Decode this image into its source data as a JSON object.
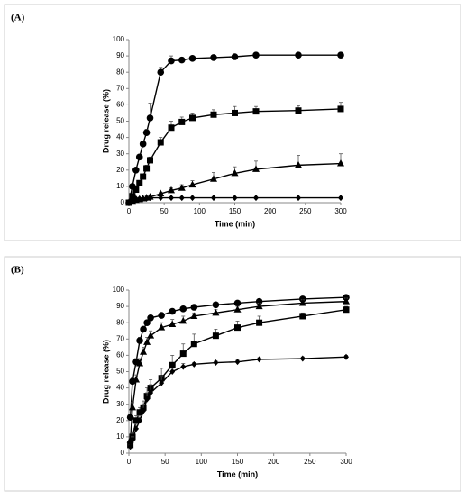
{
  "chart_data": [
    {
      "type": "line",
      "label": "(A)",
      "xlabel": "Time (min)",
      "ylabel": "Drug release (%)",
      "x": [
        0,
        5,
        10,
        15,
        20,
        25,
        30,
        45,
        60,
        75,
        90,
        120,
        150,
        180,
        240,
        300
      ],
      "xlim": [
        0,
        300
      ],
      "xticks": [
        0,
        50,
        100,
        150,
        200,
        250,
        300
      ],
      "ylim": [
        0,
        100
      ],
      "yticks": [
        0,
        10,
        20,
        30,
        40,
        50,
        60,
        70,
        80,
        90,
        100
      ],
      "series": [
        {
          "marker": "circle",
          "color": "#000000",
          "values": [
            0,
            10,
            20,
            28,
            36,
            43,
            52,
            80,
            87,
            87.5,
            88.5,
            89,
            89.5,
            90.5,
            90.5,
            90.5
          ],
          "errors": [
            0,
            1,
            1,
            1,
            1,
            2,
            9,
            3,
            3,
            1.5,
            1,
            1,
            1,
            1,
            1,
            1
          ]
        },
        {
          "marker": "square",
          "color": "#000000",
          "values": [
            0,
            4,
            8,
            12,
            16,
            21,
            26,
            37,
            46,
            49.5,
            52,
            54,
            55,
            56,
            56.5,
            57.5
          ],
          "errors": [
            0,
            1,
            1,
            1,
            1,
            2,
            2,
            3,
            4,
            3,
            3,
            3,
            4,
            3,
            3,
            4
          ]
        },
        {
          "marker": "triangle",
          "color": "#000000",
          "values": [
            0,
            1,
            1.5,
            2,
            2.5,
            3,
            3.5,
            5.5,
            7.5,
            9,
            11,
            14.5,
            18,
            20.5,
            23,
            24
          ],
          "errors": [
            0,
            0.5,
            0.5,
            0.5,
            0.5,
            1,
            1,
            1,
            1.5,
            2,
            2.5,
            4,
            4,
            5,
            6,
            6
          ]
        },
        {
          "marker": "diamond",
          "color": "#000000",
          "values": [
            0,
            2,
            2.5,
            2.5,
            2.5,
            2.5,
            3,
            3,
            3,
            3,
            3,
            3,
            3,
            3,
            3,
            3
          ],
          "errors": [
            0,
            0.3,
            0.3,
            0.3,
            0.3,
            0.3,
            0.3,
            0.3,
            0.3,
            0.3,
            0.3,
            0.3,
            0.3,
            0.3,
            0.3,
            0.3
          ]
        }
      ]
    },
    {
      "type": "line",
      "label": "(B)",
      "xlabel": "Time (min)",
      "ylabel": "Drug release (%)",
      "x": [
        2,
        5,
        10,
        15,
        20,
        25,
        30,
        45,
        60,
        75,
        90,
        120,
        150,
        180,
        240,
        300
      ],
      "xlim": [
        0,
        300
      ],
      "xticks": [
        0,
        50,
        100,
        150,
        200,
        250,
        300
      ],
      "ylim": [
        0,
        100
      ],
      "yticks": [
        0,
        10,
        20,
        30,
        40,
        50,
        60,
        70,
        80,
        90,
        100
      ],
      "series": [
        {
          "marker": "circle",
          "color": "#000000",
          "values": [
            22,
            44,
            56,
            69,
            76,
            80,
            83,
            84.5,
            87,
            88.5,
            89.5,
            91,
            92,
            93,
            94.5,
            95.5
          ],
          "errors": [
            2,
            2,
            2,
            2,
            1.5,
            1.5,
            1,
            1,
            1,
            1,
            1,
            1,
            1,
            1,
            1,
            1
          ]
        },
        {
          "marker": "triangle",
          "color": "#000000",
          "values": [
            8,
            28,
            45,
            55,
            62,
            68,
            72,
            77,
            79,
            81,
            84,
            86,
            88,
            90,
            92,
            93
          ],
          "errors": [
            2,
            3,
            3,
            3,
            3,
            3,
            3,
            3,
            3,
            3,
            2,
            2,
            2,
            2,
            2,
            2
          ]
        },
        {
          "marker": "square",
          "color": "#000000",
          "values": [
            5,
            10,
            20,
            25,
            28,
            35,
            40,
            46,
            54,
            61,
            67,
            72,
            77,
            80,
            84,
            88
          ],
          "errors": [
            1,
            2,
            3,
            3,
            4,
            5,
            5,
            6,
            6,
            6,
            6,
            4,
            4,
            4,
            2,
            2
          ]
        },
        {
          "marker": "diamond",
          "color": "#000000",
          "values": [
            4,
            8,
            15,
            20,
            26,
            33,
            37,
            43,
            50,
            53,
            54.5,
            55.5,
            56,
            57.5,
            58,
            59
          ],
          "errors": [
            1,
            2,
            3,
            3,
            4,
            4,
            5,
            4,
            2,
            2,
            1,
            1,
            1,
            1,
            1,
            1
          ]
        }
      ]
    }
  ]
}
